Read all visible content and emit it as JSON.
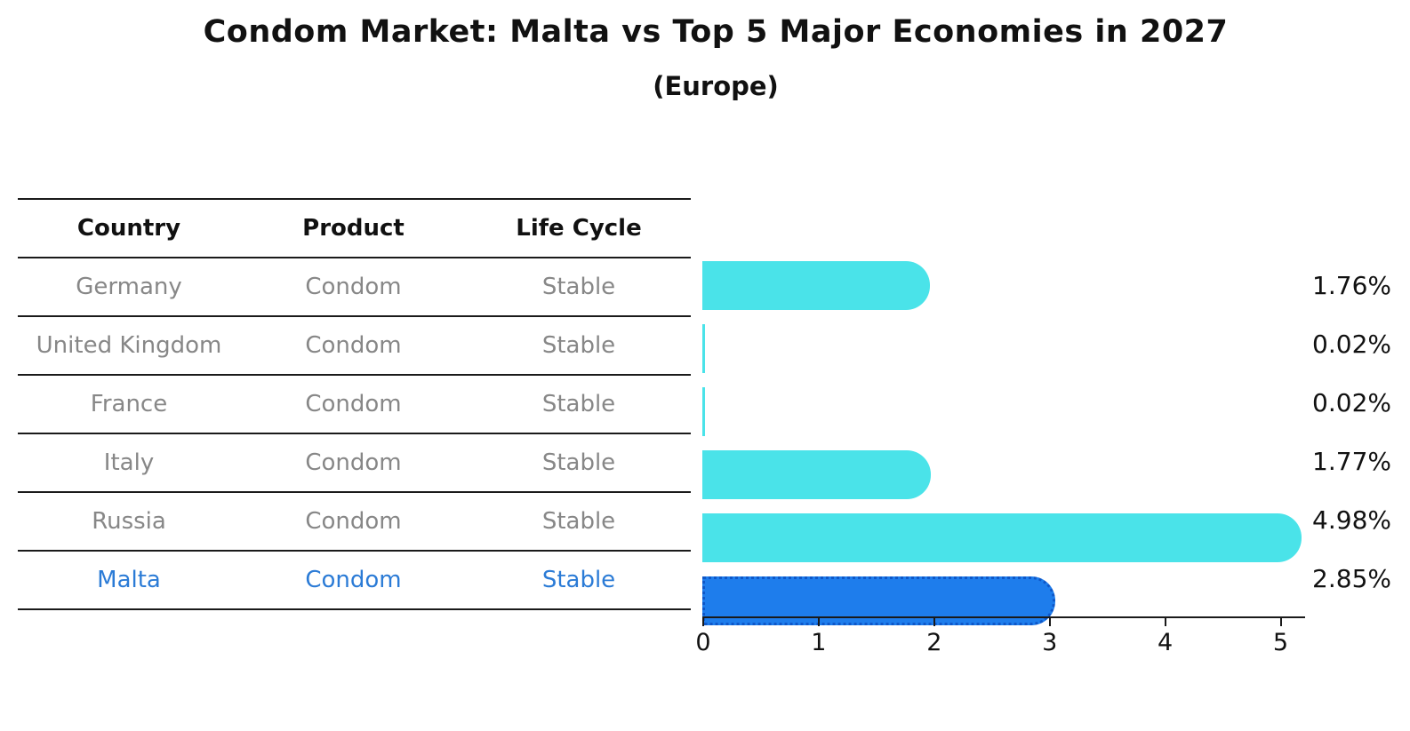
{
  "chart": {
    "title": "Condom Market: Malta vs Top 5 Major Economies in 2027",
    "subtitle": "(Europe)"
  },
  "table": {
    "columns": [
      "Country",
      "Product",
      "Life Cycle"
    ],
    "rows": [
      {
        "country": "Germany",
        "product": "Condom",
        "life_cycle": "Stable",
        "highlight": false
      },
      {
        "country": "United Kingdom",
        "product": "Condom",
        "life_cycle": "Stable",
        "highlight": false
      },
      {
        "country": "France",
        "product": "Condom",
        "life_cycle": "Stable",
        "highlight": false
      },
      {
        "country": "Italy",
        "product": "Condom",
        "life_cycle": "Stable",
        "highlight": false
      },
      {
        "country": "Russia",
        "product": "Condom",
        "life_cycle": "Stable",
        "highlight": false
      },
      {
        "country": "Malta",
        "product": "Condom",
        "life_cycle": "Stable",
        "highlight": true
      }
    ]
  },
  "chart_data": {
    "type": "bar",
    "orientation": "horizontal",
    "title": "Condom Market: Malta vs Top 5 Major Economies in 2027",
    "subtitle": "(Europe)",
    "categories": [
      "Germany",
      "United Kingdom",
      "France",
      "Italy",
      "Russia",
      "Malta"
    ],
    "values": [
      1.76,
      0.02,
      0.02,
      1.77,
      4.98,
      2.85
    ],
    "value_labels": [
      "1.76%",
      "0.02%",
      "0.02%",
      "1.77%",
      "4.98%",
      "2.85%"
    ],
    "xlabel": "",
    "ylabel": "",
    "xlim": [
      0,
      5.2
    ],
    "xticks": [
      0,
      1,
      2,
      3,
      4,
      5
    ],
    "grid": false,
    "legend": "none",
    "highlight_category": "Malta",
    "colors": {
      "bar": "#4ae3e9",
      "highlight_bar": "#1e7dec",
      "highlight_border": "#0e57c8",
      "row_text": "#878787",
      "header_text": "#111111",
      "highlight_text": "#2b7bd6",
      "axis": "#1a1a1a"
    }
  }
}
